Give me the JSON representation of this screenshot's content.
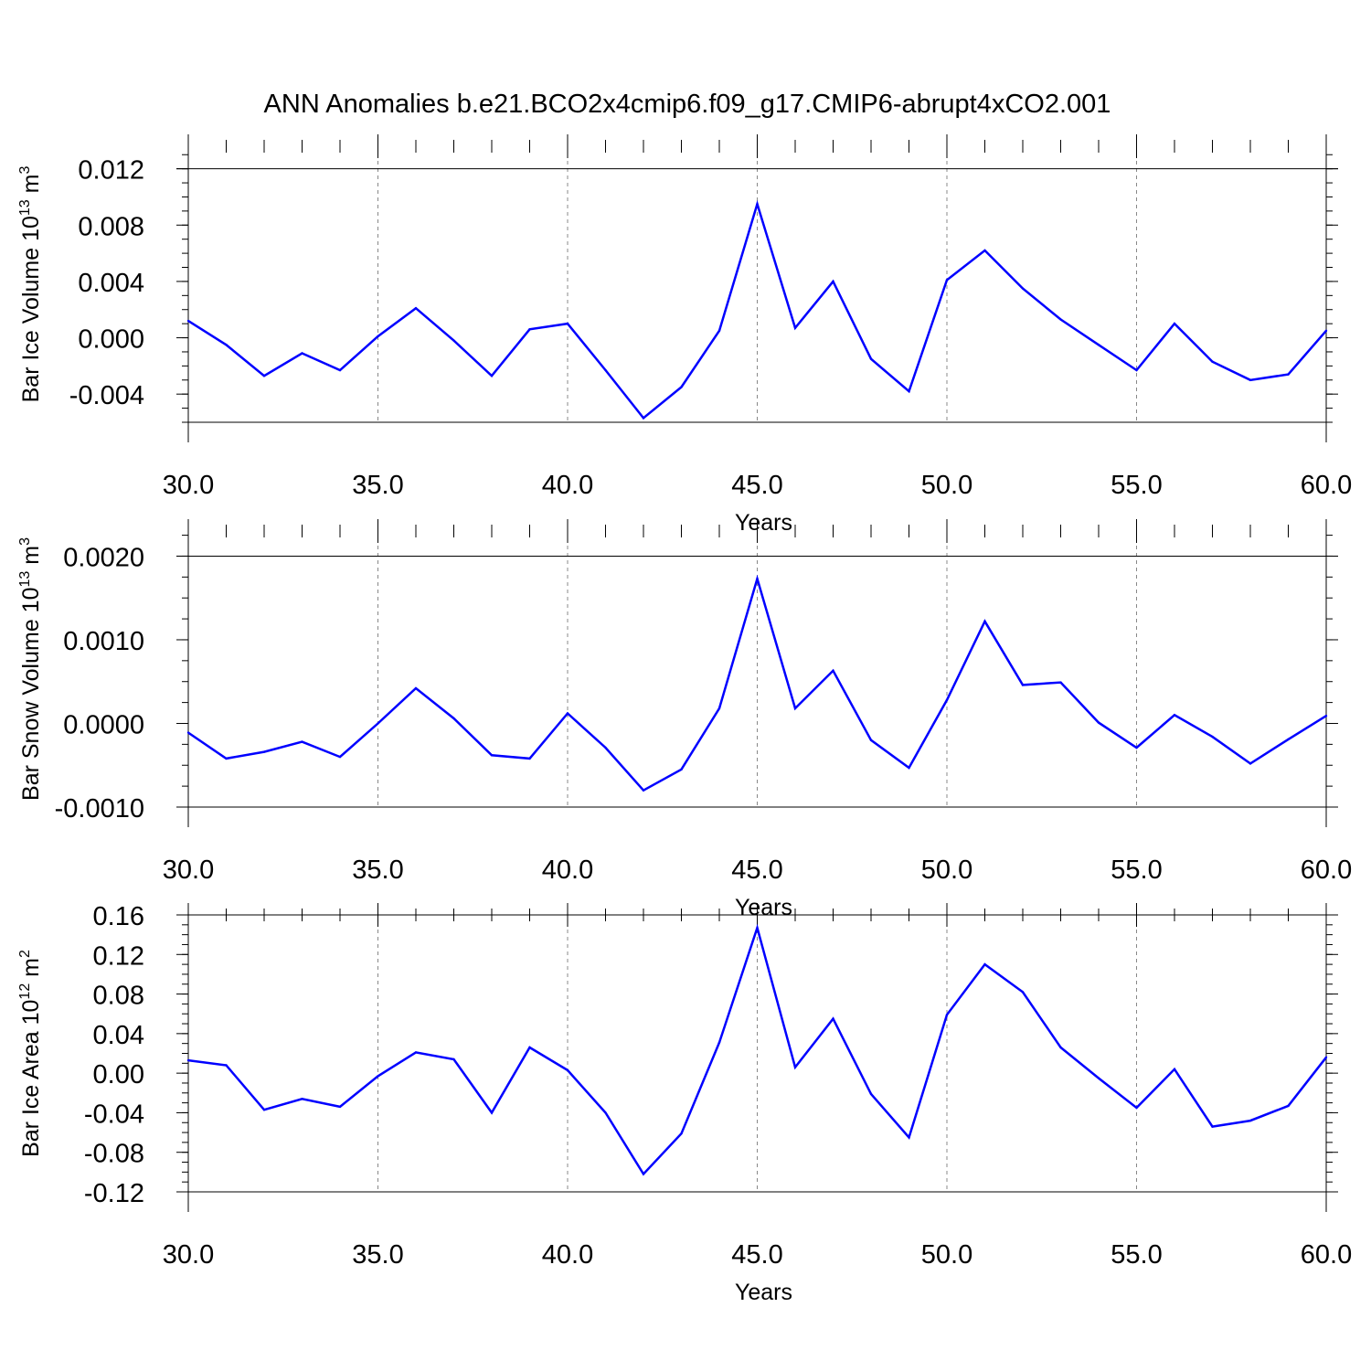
{
  "title": "ANN Anomalies b.e21.BCO2x4cmip6.f09_g17.CMIP6-abrupt4xCO2.001",
  "line_color": "#0000ff",
  "grid_color": "#888888",
  "chart_data": [
    {
      "type": "line",
      "xlabel": "Years",
      "ylabel_main": "Bar Ice Volume 10",
      "ylabel_sup": "13",
      "ylabel_unit": " m",
      "ylabel_unit_sup": "3",
      "xlim": [
        30,
        60
      ],
      "ylim": [
        -0.006,
        0.0136
      ],
      "x_ticks": [
        "30.0",
        "35.0",
        "40.0",
        "45.0",
        "50.0",
        "55.0",
        "60.0"
      ],
      "y_ticks": [
        "0.012",
        "0.008",
        "0.004",
        "0.000",
        "-0.004"
      ],
      "vgrid": [
        35,
        40,
        45,
        50,
        55
      ],
      "series": [
        {
          "x": [
            30,
            31,
            32,
            33,
            34,
            35,
            36,
            37,
            38,
            39,
            40,
            41,
            42,
            43,
            44,
            45,
            46,
            47,
            48,
            49,
            50,
            51,
            52,
            53,
            54,
            55,
            56,
            57,
            58,
            59,
            60
          ],
          "values": [
            0.0012,
            -0.0005,
            -0.0027,
            -0.0011,
            -0.0023,
            0.0001,
            0.0021,
            -0.0002,
            -0.0027,
            0.0006,
            0.001,
            -0.0023,
            -0.0057,
            -0.0035,
            0.0005,
            0.0095,
            0.0007,
            0.004,
            -0.0015,
            -0.0038,
            0.0041,
            0.0062,
            0.0035,
            0.0013,
            -0.0005,
            -0.0023,
            0.001,
            -0.0017,
            -0.003,
            -0.0026,
            0.0005
          ]
        }
      ]
    },
    {
      "type": "line",
      "xlabel": "Years",
      "ylabel_main": "Bar Snow Volume 10",
      "ylabel_sup": "13",
      "ylabel_unit": " m",
      "ylabel_unit_sup": "3",
      "xlim": [
        30,
        60
      ],
      "ylim": [
        -0.001,
        0.0023
      ],
      "x_ticks": [
        "30.0",
        "35.0",
        "40.0",
        "45.0",
        "50.0",
        "55.0",
        "60.0"
      ],
      "y_ticks": [
        "0.0020",
        "0.0010",
        "0.0000",
        "-0.0010"
      ],
      "vgrid": [
        35,
        40,
        45,
        50,
        55
      ],
      "series": [
        {
          "x": [
            30,
            31,
            32,
            33,
            34,
            35,
            36,
            37,
            38,
            39,
            40,
            41,
            42,
            43,
            44,
            45,
            46,
            47,
            48,
            49,
            50,
            51,
            52,
            53,
            54,
            55,
            56,
            57,
            58,
            59,
            60
          ],
          "values": [
            -0.00011,
            -0.00042,
            -0.00034,
            -0.00022,
            -0.0004,
            0.0,
            0.00042,
            6e-05,
            -0.00038,
            -0.00042,
            0.00012,
            -0.00029,
            -0.0008,
            -0.00055,
            0.00018,
            0.00173,
            0.00018,
            0.00063,
            -0.0002,
            -0.00053,
            0.00028,
            0.00122,
            0.00046,
            0.00049,
            1e-05,
            -0.00029,
            0.0001,
            -0.00016,
            -0.00048,
            -0.00019,
            9e-05
          ]
        }
      ]
    },
    {
      "type": "line",
      "xlabel": "Years",
      "ylabel_main": "Bar Ice Area 10",
      "ylabel_sup": "12",
      "ylabel_unit": " m",
      "ylabel_unit_sup": "2",
      "xlim": [
        30,
        60
      ],
      "ylim": [
        -0.12,
        0.16
      ],
      "x_ticks": [
        "30.0",
        "35.0",
        "40.0",
        "45.0",
        "50.0",
        "55.0",
        "60.0"
      ],
      "y_ticks": [
        "0.16",
        "0.12",
        "0.08",
        "0.04",
        "0.00",
        "-0.04",
        "-0.08",
        "-0.12"
      ],
      "vgrid": [
        35,
        40,
        45,
        50,
        55
      ],
      "series": [
        {
          "x": [
            30,
            31,
            32,
            33,
            34,
            35,
            36,
            37,
            38,
            39,
            40,
            41,
            42,
            43,
            44,
            45,
            46,
            47,
            48,
            49,
            50,
            51,
            52,
            53,
            54,
            55,
            56,
            57,
            58,
            59,
            60
          ],
          "values": [
            0.013,
            0.008,
            -0.037,
            -0.026,
            -0.034,
            -0.003,
            0.021,
            0.014,
            -0.04,
            0.026,
            0.003,
            -0.04,
            -0.102,
            -0.061,
            0.031,
            0.147,
            0.006,
            0.055,
            -0.021,
            -0.065,
            0.059,
            0.11,
            0.082,
            0.026,
            -0.005,
            -0.035,
            0.004,
            -0.054,
            -0.048,
            -0.033,
            0.016
          ]
        }
      ]
    }
  ]
}
